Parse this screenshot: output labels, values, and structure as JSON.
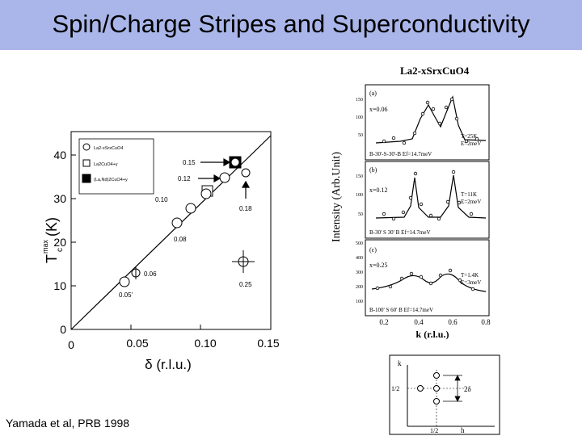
{
  "slide": {
    "title": "Spin/Charge Stripes and Superconductivity",
    "credit": "Yamada et al, PRB 1998"
  },
  "left_plot": {
    "ylabel_main": "T",
    "ylabel_sub": "c",
    "ylabel_sup": "max",
    "ylabel_unit": "(K)",
    "xlabel": "δ (r.l.u.)",
    "x_ticks": [
      "0",
      "0.05",
      "0.10",
      "0.15"
    ],
    "y_ticks": [
      "0",
      "10",
      "20",
      "30",
      "40"
    ],
    "legend": [
      "La2-xSrxCuO4",
      "La2CuO4+y",
      "(La,Nd)2CuO4+y"
    ],
    "annotations": [
      "0.05'",
      "0.06",
      "0.08",
      "0.10",
      "0.12",
      "0.15",
      "0.18",
      "0.25"
    ]
  },
  "right_plot": {
    "formula": "La2-xSrxCuO4",
    "ylabel": "Intensity (Arb.Unit)",
    "xlabel": "k (r.l.u.)",
    "x_ticks": [
      "0.2",
      "0.4",
      "0.6",
      "0.8"
    ],
    "panels": [
      {
        "label": "(a)",
        "x": "x=0.06",
        "T": "T=25K",
        "E": "E=2meV",
        "config": "B-30'-S-30'-B  Ef=14.7meV",
        "y_ticks": [
          "150",
          "100",
          "50"
        ]
      },
      {
        "label": "(b)",
        "x": "x=0.12",
        "T": "T=11K",
        "E": "E=2meV",
        "config": "B-30' S 30' B  Ef=14.7meV",
        "y_ticks": [
          "150",
          "100",
          "50"
        ]
      },
      {
        "label": "(c)",
        "x": "x=0.25",
        "T": "T=1.4K",
        "E": "E=3meV",
        "config": "B-100' S 60' B  Ef=14.7meV",
        "y_ticks": [
          "500",
          "400",
          "300",
          "200",
          "100"
        ]
      }
    ]
  },
  "inset": {
    "k_label": "k",
    "h_label": "h",
    "half_k": "1/2",
    "half_h": "1/2",
    "delta_label": "2δ"
  }
}
